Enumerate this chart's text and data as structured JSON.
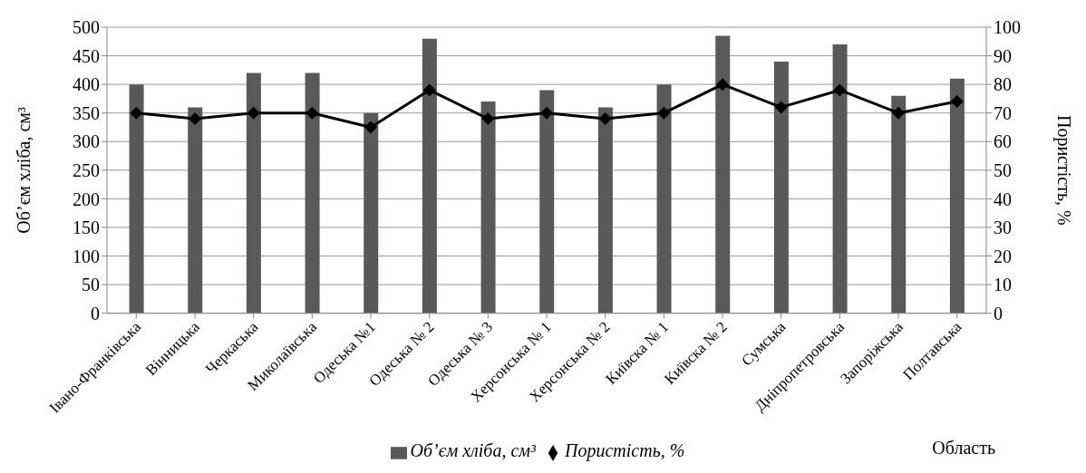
{
  "chart_data": {
    "type": "bar",
    "xlabel": "Область",
    "ylabel": "Об’єм хліба, см³",
    "y2label": "Пористість, %",
    "categories": [
      "Івано-Франківська",
      "Вінницька",
      "Черкаська",
      "Миколаївська",
      "Одеська №1",
      "Одеська № 2",
      "Одеська № 3",
      "Херсонська № 1",
      "Херсонська № 2",
      "Київска № 1",
      "Київска № 2",
      "Сумська",
      "Дніпропетровська",
      "Запоріжська",
      "Полтавська"
    ],
    "series": [
      {
        "name": "Об’єм хліба, см³",
        "color": "#595959",
        "values": [
          400,
          360,
          420,
          420,
          350,
          480,
          370,
          390,
          360,
          400,
          485,
          440,
          470,
          380,
          410
        ]
      },
      {
        "name": "Пористість, %",
        "type": "line",
        "axis": "y2",
        "color": "#000000",
        "marker": "diamond",
        "values": [
          70,
          68,
          70,
          70,
          65,
          78,
          68,
          70,
          68,
          70,
          80,
          72,
          78,
          70,
          74
        ]
      }
    ],
    "ylim": [
      0,
      500
    ],
    "yticks": [
      0,
      50,
      100,
      150,
      200,
      250,
      300,
      350,
      400,
      450,
      500
    ],
    "y2lim": [
      0,
      100
    ],
    "y2ticks": [
      0,
      10,
      20,
      30,
      40,
      50,
      60,
      70,
      80,
      90,
      100
    ],
    "grid": "y",
    "legend": "bottom"
  }
}
